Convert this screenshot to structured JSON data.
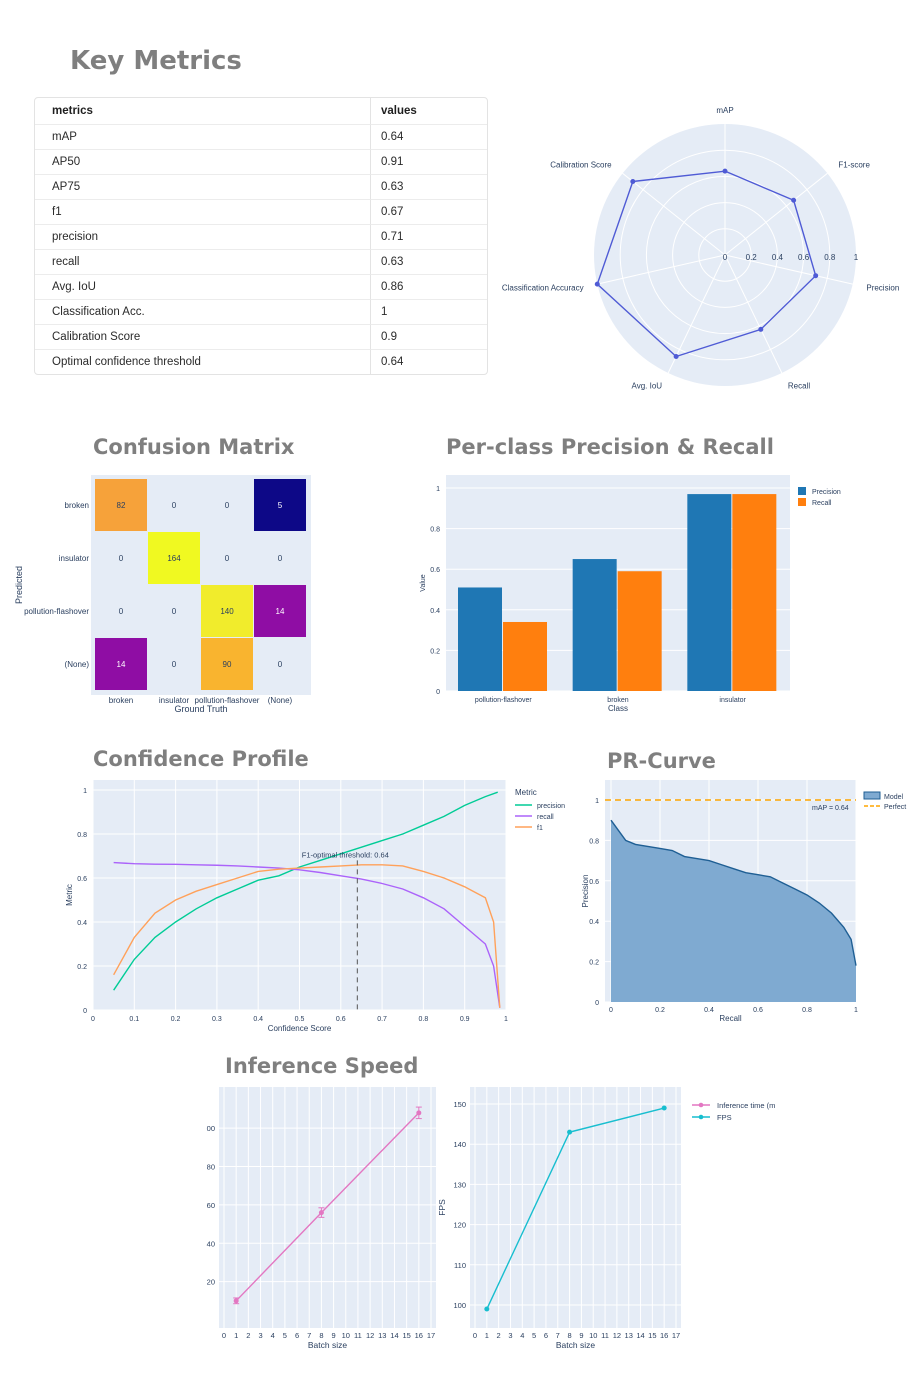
{
  "headings": {
    "key_metrics": "Key Metrics",
    "confusion_matrix": "Confusion Matrix",
    "per_class": "Per-class Precision & Recall",
    "confidence_profile": "Confidence Profile",
    "pr_curve": "PR-Curve",
    "inference_speed": "Inference Speed"
  },
  "metrics_table": {
    "columns": [
      "metrics",
      "values"
    ],
    "rows": [
      [
        "mAP",
        "0.64"
      ],
      [
        "AP50",
        "0.91"
      ],
      [
        "AP75",
        "0.63"
      ],
      [
        "f1",
        "0.67"
      ],
      [
        "precision",
        "0.71"
      ],
      [
        "recall",
        "0.63"
      ],
      [
        "Avg. IoU",
        "0.86"
      ],
      [
        "Classification Acc.",
        "1"
      ],
      [
        "Calibration Score",
        "0.9"
      ],
      [
        "Optimal confidence threshold",
        "0.64"
      ]
    ]
  },
  "colors": {
    "plot_bg": "#e5ecf6",
    "radar_line": "#4f5bd5",
    "precision_bar": "#1f77b4",
    "recall_bar": "#ff7f0e",
    "conf_precision": "#00cc96",
    "conf_recall": "#ab63fa",
    "conf_f1": "#ffa15a",
    "pr_fill": "#7faad1",
    "pr_line": "#1f5f94",
    "perfect_line": "#ffa500",
    "inference_line": "#e377c2",
    "fps_line": "#17becf"
  },
  "chart_data": [
    {
      "type": "radar",
      "axes": [
        "mAP",
        "F1-score",
        "Precision",
        "Recall",
        "Avg. IoU",
        "Classification Accuracy",
        "Calibration Score"
      ],
      "values": [
        0.64,
        0.67,
        0.71,
        0.63,
        0.86,
        1.0,
        0.9
      ],
      "range": [
        0,
        1
      ],
      "radial_ticks": [
        "0",
        "0.2",
        "0.4",
        "0.6",
        "0.8",
        "1"
      ]
    },
    {
      "type": "heatmap",
      "xlabel": "Ground Truth",
      "ylabel": "Predicted",
      "x_categories": [
        "broken",
        "insulator",
        "pollution-flashover",
        "(None)"
      ],
      "y_categories": [
        "broken",
        "insulator",
        "pollution-flashover",
        "(None)"
      ],
      "z": [
        [
          82,
          0,
          0,
          5
        ],
        [
          0,
          164,
          0,
          0
        ],
        [
          0,
          0,
          140,
          14
        ],
        [
          14,
          0,
          90,
          0
        ]
      ],
      "colors": [
        [
          "#f6a23a",
          null,
          null,
          "#0d0887"
        ],
        [
          null,
          "#f0f921",
          null,
          null
        ],
        [
          null,
          null,
          "#f1ec2c",
          "#8f0da4"
        ],
        [
          "#8f0da4",
          null,
          "#f9b42f",
          null
        ]
      ]
    },
    {
      "type": "bar",
      "xlabel": "Class",
      "ylabel": "Value",
      "categories": [
        "pollution-flashover",
        "broken",
        "insulator"
      ],
      "series": [
        {
          "name": "Precision",
          "values": [
            0.51,
            0.65,
            0.97
          ]
        },
        {
          "name": "Recall",
          "values": [
            0.34,
            0.59,
            0.97
          ]
        }
      ],
      "ylim": [
        0,
        1
      ],
      "yticks": [
        "0",
        "0.2",
        "0.4",
        "0.6",
        "0.8",
        "1"
      ],
      "legend": "top-right"
    },
    {
      "type": "line",
      "xlabel": "Confidence Score",
      "ylabel": "Metric",
      "legend_title": "Metric",
      "xlim": [
        0,
        1
      ],
      "ylim": [
        0,
        1
      ],
      "xticks": [
        "0",
        "0.1",
        "0.2",
        "0.3",
        "0.4",
        "0.5",
        "0.6",
        "0.7",
        "0.8",
        "0.9",
        "1"
      ],
      "yticks": [
        "0",
        "0.2",
        "0.4",
        "0.6",
        "0.8",
        "1"
      ],
      "annotation": "F1-optimal threshold: 0.64",
      "threshold": 0.64,
      "series": [
        {
          "name": "precision",
          "x": [
            0.05,
            0.1,
            0.15,
            0.2,
            0.25,
            0.3,
            0.35,
            0.4,
            0.45,
            0.5,
            0.55,
            0.6,
            0.65,
            0.7,
            0.75,
            0.8,
            0.85,
            0.9,
            0.95,
            0.98
          ],
          "y": [
            0.09,
            0.23,
            0.33,
            0.4,
            0.46,
            0.51,
            0.55,
            0.59,
            0.61,
            0.65,
            0.68,
            0.71,
            0.74,
            0.77,
            0.8,
            0.84,
            0.88,
            0.93,
            0.97,
            0.99
          ]
        },
        {
          "name": "recall",
          "x": [
            0.05,
            0.1,
            0.15,
            0.2,
            0.25,
            0.3,
            0.35,
            0.4,
            0.45,
            0.5,
            0.55,
            0.6,
            0.65,
            0.7,
            0.75,
            0.8,
            0.85,
            0.9,
            0.95,
            0.97,
            0.985
          ],
          "y": [
            0.67,
            0.665,
            0.663,
            0.662,
            0.66,
            0.658,
            0.655,
            0.65,
            0.645,
            0.637,
            0.625,
            0.61,
            0.595,
            0.575,
            0.55,
            0.51,
            0.46,
            0.38,
            0.3,
            0.2,
            0.01
          ]
        },
        {
          "name": "f1",
          "x": [
            0.05,
            0.1,
            0.15,
            0.2,
            0.25,
            0.3,
            0.35,
            0.4,
            0.45,
            0.5,
            0.55,
            0.6,
            0.65,
            0.7,
            0.75,
            0.8,
            0.85,
            0.9,
            0.95,
            0.97,
            0.985
          ],
          "y": [
            0.16,
            0.33,
            0.44,
            0.5,
            0.54,
            0.57,
            0.6,
            0.63,
            0.64,
            0.645,
            0.65,
            0.655,
            0.66,
            0.66,
            0.655,
            0.63,
            0.6,
            0.56,
            0.51,
            0.4,
            0.01
          ]
        }
      ]
    },
    {
      "type": "area",
      "xlabel": "Recall",
      "ylabel": "Precision",
      "xlim": [
        0,
        1
      ],
      "ylim": [
        0,
        1
      ],
      "xticks": [
        "0",
        "0.2",
        "0.4",
        "0.6",
        "0.8",
        "1"
      ],
      "yticks": [
        "0",
        "0.2",
        "0.4",
        "0.6",
        "0.8",
        "1"
      ],
      "annotation": "mAP = 0.64",
      "series": [
        {
          "name": "Model",
          "x": [
            0.0,
            0.03,
            0.06,
            0.1,
            0.15,
            0.2,
            0.25,
            0.3,
            0.35,
            0.4,
            0.45,
            0.5,
            0.55,
            0.6,
            0.65,
            0.7,
            0.75,
            0.8,
            0.85,
            0.9,
            0.95,
            0.98,
            1.0
          ],
          "y": [
            0.9,
            0.85,
            0.8,
            0.78,
            0.77,
            0.76,
            0.75,
            0.72,
            0.71,
            0.7,
            0.68,
            0.66,
            0.64,
            0.63,
            0.62,
            0.59,
            0.56,
            0.53,
            0.49,
            0.44,
            0.37,
            0.31,
            0.18
          ]
        },
        {
          "name": "Perfect",
          "x": [
            0,
            1
          ],
          "y": [
            1,
            1
          ]
        }
      ]
    },
    {
      "type": "line",
      "xlabel": "Batch size",
      "ylabel": "",
      "xlim": [
        0,
        17
      ],
      "xticks": [
        "0",
        "1",
        "2",
        "3",
        "4",
        "5",
        "6",
        "7",
        "8",
        "9",
        "10",
        "11",
        "12",
        "13",
        "14",
        "15",
        "16",
        "17"
      ],
      "yticks": [
        "20",
        "40",
        "60",
        "80",
        "00"
      ],
      "series": [
        {
          "name": "Inference time (m",
          "x": [
            1,
            8,
            16
          ],
          "y": [
            10,
            56,
            108
          ],
          "error": [
            1.5,
            2.5,
            3
          ]
        }
      ]
    },
    {
      "type": "line",
      "xlabel": "Batch size",
      "ylabel": "FPS",
      "xlim": [
        0,
        17
      ],
      "xticks": [
        "0",
        "1",
        "2",
        "3",
        "4",
        "5",
        "6",
        "7",
        "8",
        "9",
        "10",
        "11",
        "12",
        "13",
        "14",
        "15",
        "16",
        "17"
      ],
      "yticks": [
        "100",
        "110",
        "120",
        "130",
        "140",
        "150"
      ],
      "series": [
        {
          "name": "FPS",
          "x": [
            1,
            8,
            16
          ],
          "y": [
            99,
            143,
            149
          ]
        }
      ],
      "legend": [
        "Inference time (m",
        "FPS"
      ]
    }
  ]
}
